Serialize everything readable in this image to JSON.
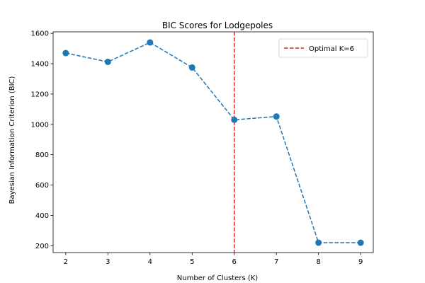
{
  "chart_data": {
    "type": "line",
    "title": "BIC Scores for Lodgepoles",
    "xlabel": "Number of Clusters (K)",
    "ylabel": "Bayesian Information Criterion (BIC)",
    "x": [
      2,
      3,
      4,
      5,
      6,
      7,
      8,
      9
    ],
    "series": [
      {
        "values": [
          1470,
          1412,
          1540,
          1375,
          1030,
          1052,
          220,
          220
        ],
        "color": "#1f77b4",
        "line_style": "dashed",
        "marker": "circle"
      }
    ],
    "xlim": [
      1.7,
      9.3
    ],
    "ylim": [
      155,
      1610
    ],
    "xticks": [
      2,
      3,
      4,
      5,
      6,
      7,
      8,
      9
    ],
    "yticks": [
      200,
      400,
      600,
      800,
      1000,
      1200,
      1400,
      1600
    ],
    "reference_line": {
      "orientation": "vertical",
      "x": 6,
      "color": "#d62728",
      "line_style": "dashed",
      "label": "Optimal K=6"
    },
    "grid": false,
    "legend_position": "top-right"
  }
}
